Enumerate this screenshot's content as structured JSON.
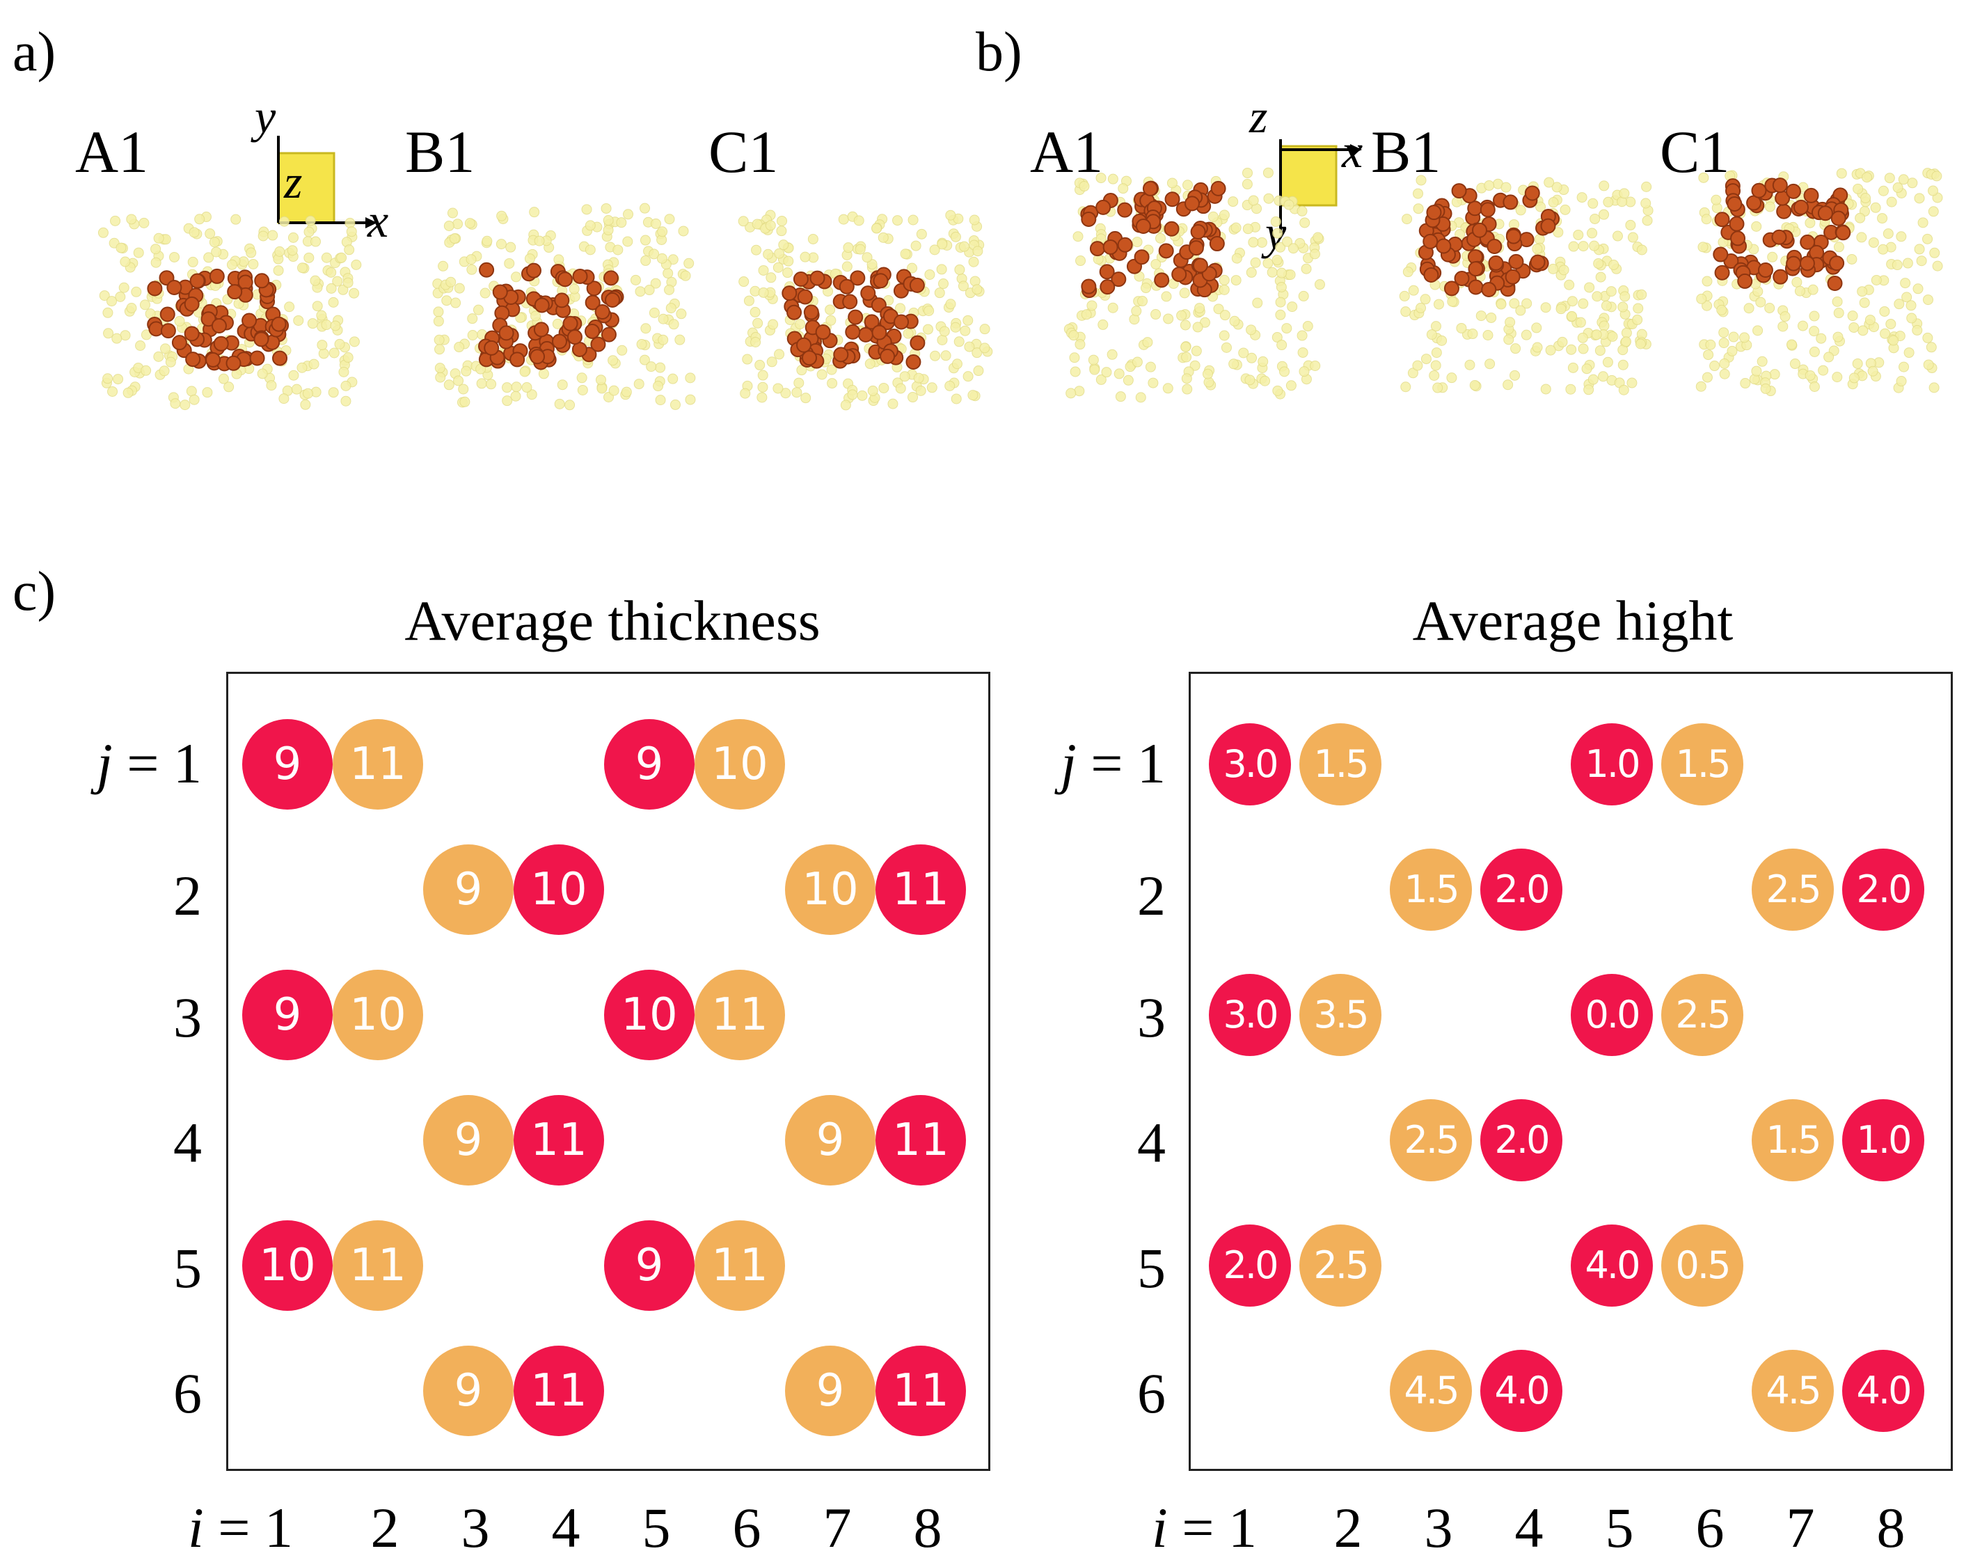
{
  "panel_a": {
    "label": "a)",
    "structures": [
      "A1",
      "B1",
      "C1"
    ],
    "axes": {
      "x": "x",
      "y": "y",
      "z": "z"
    }
  },
  "panel_b": {
    "label": "b)",
    "structures": [
      "A1",
      "B1",
      "C1"
    ],
    "axes": {
      "x": "x",
      "y": "y",
      "z": "z"
    }
  },
  "panel_c": {
    "label": "c)",
    "j_prefix": "j",
    "i_prefix": "i",
    "row_labels": [
      "1",
      "2",
      "3",
      "4",
      "5",
      "6"
    ],
    "col_labels": [
      "1",
      "2",
      "3",
      "4",
      "5",
      "6",
      "7",
      "8"
    ],
    "eq": "=",
    "colors": {
      "red": "#f0154b",
      "orange": "#f2b05a",
      "atom_light": "#f5f0a8",
      "atom_dark": "#c7541f",
      "axis_cube": "#f5e44a"
    },
    "thickness": {
      "title": "Average thickness",
      "cells": [
        {
          "row": 1,
          "col": 1,
          "value": "9",
          "color": "red"
        },
        {
          "row": 1,
          "col": 2,
          "value": "11",
          "color": "orange"
        },
        {
          "row": 1,
          "col": 5,
          "value": "9",
          "color": "red"
        },
        {
          "row": 1,
          "col": 6,
          "value": "10",
          "color": "orange"
        },
        {
          "row": 2,
          "col": 3,
          "value": "9",
          "color": "orange"
        },
        {
          "row": 2,
          "col": 4,
          "value": "10",
          "color": "red"
        },
        {
          "row": 2,
          "col": 7,
          "value": "10",
          "color": "orange"
        },
        {
          "row": 2,
          "col": 8,
          "value": "11",
          "color": "red"
        },
        {
          "row": 3,
          "col": 1,
          "value": "9",
          "color": "red"
        },
        {
          "row": 3,
          "col": 2,
          "value": "10",
          "color": "orange"
        },
        {
          "row": 3,
          "col": 5,
          "value": "10",
          "color": "red"
        },
        {
          "row": 3,
          "col": 6,
          "value": "11",
          "color": "orange"
        },
        {
          "row": 4,
          "col": 3,
          "value": "9",
          "color": "orange"
        },
        {
          "row": 4,
          "col": 4,
          "value": "11",
          "color": "red"
        },
        {
          "row": 4,
          "col": 7,
          "value": "9",
          "color": "orange"
        },
        {
          "row": 4,
          "col": 8,
          "value": "11",
          "color": "red"
        },
        {
          "row": 5,
          "col": 1,
          "value": "10",
          "color": "red"
        },
        {
          "row": 5,
          "col": 2,
          "value": "11",
          "color": "orange"
        },
        {
          "row": 5,
          "col": 5,
          "value": "9",
          "color": "red"
        },
        {
          "row": 5,
          "col": 6,
          "value": "11",
          "color": "orange"
        },
        {
          "row": 6,
          "col": 3,
          "value": "9",
          "color": "orange"
        },
        {
          "row": 6,
          "col": 4,
          "value": "11",
          "color": "red"
        },
        {
          "row": 6,
          "col": 7,
          "value": "9",
          "color": "orange"
        },
        {
          "row": 6,
          "col": 8,
          "value": "11",
          "color": "red"
        }
      ]
    },
    "height": {
      "title": "Average hight",
      "cells": [
        {
          "row": 1,
          "col": 1,
          "value": "3.0",
          "color": "red"
        },
        {
          "row": 1,
          "col": 2,
          "value": "1.5",
          "color": "orange"
        },
        {
          "row": 1,
          "col": 5,
          "value": "1.0",
          "color": "red"
        },
        {
          "row": 1,
          "col": 6,
          "value": "1.5",
          "color": "orange"
        },
        {
          "row": 2,
          "col": 3,
          "value": "1.5",
          "color": "orange"
        },
        {
          "row": 2,
          "col": 4,
          "value": "2.0",
          "color": "red"
        },
        {
          "row": 2,
          "col": 7,
          "value": "2.5",
          "color": "orange"
        },
        {
          "row": 2,
          "col": 8,
          "value": "2.0",
          "color": "red"
        },
        {
          "row": 3,
          "col": 1,
          "value": "3.0",
          "color": "red"
        },
        {
          "row": 3,
          "col": 2,
          "value": "3.5",
          "color": "orange"
        },
        {
          "row": 3,
          "col": 5,
          "value": "0.0",
          "color": "red"
        },
        {
          "row": 3,
          "col": 6,
          "value": "2.5",
          "color": "orange"
        },
        {
          "row": 4,
          "col": 3,
          "value": "2.5",
          "color": "orange"
        },
        {
          "row": 4,
          "col": 4,
          "value": "2.0",
          "color": "red"
        },
        {
          "row": 4,
          "col": 7,
          "value": "1.5",
          "color": "orange"
        },
        {
          "row": 4,
          "col": 8,
          "value": "1.0",
          "color": "red"
        },
        {
          "row": 5,
          "col": 1,
          "value": "2.0",
          "color": "red"
        },
        {
          "row": 5,
          "col": 2,
          "value": "2.5",
          "color": "orange"
        },
        {
          "row": 5,
          "col": 5,
          "value": "4.0",
          "color": "red"
        },
        {
          "row": 5,
          "col": 6,
          "value": "0.5",
          "color": "orange"
        },
        {
          "row": 6,
          "col": 3,
          "value": "4.5",
          "color": "orange"
        },
        {
          "row": 6,
          "col": 4,
          "value": "4.0",
          "color": "red"
        },
        {
          "row": 6,
          "col": 7,
          "value": "4.5",
          "color": "orange"
        },
        {
          "row": 6,
          "col": 8,
          "value": "4.0",
          "color": "red"
        }
      ]
    }
  }
}
